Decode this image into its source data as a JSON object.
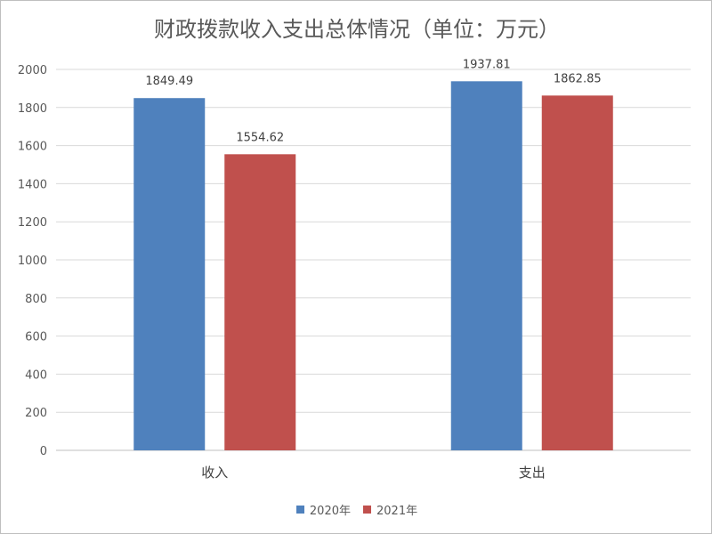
{
  "chart_data": {
    "type": "bar",
    "title": "财政拨款收入支出总体情况（单位：万元）",
    "xlabel": "",
    "ylabel": "",
    "categories": [
      "收入",
      "支出"
    ],
    "series": [
      {
        "name": "2020年",
        "color": "#4f81bd",
        "values": [
          1849.49,
          1937.81
        ],
        "labels": [
          "1849.49",
          "1937.81"
        ]
      },
      {
        "name": "2021年",
        "color": "#c0504d",
        "values": [
          1554.62,
          1862.85
        ],
        "labels": [
          "1554.62",
          "1862.85"
        ]
      }
    ],
    "ylim": [
      0,
      2000
    ],
    "yticks": [
      0,
      200,
      400,
      600,
      800,
      1000,
      1200,
      1400,
      1600,
      1800,
      2000
    ],
    "grid": true,
    "legend_position": "bottom"
  }
}
